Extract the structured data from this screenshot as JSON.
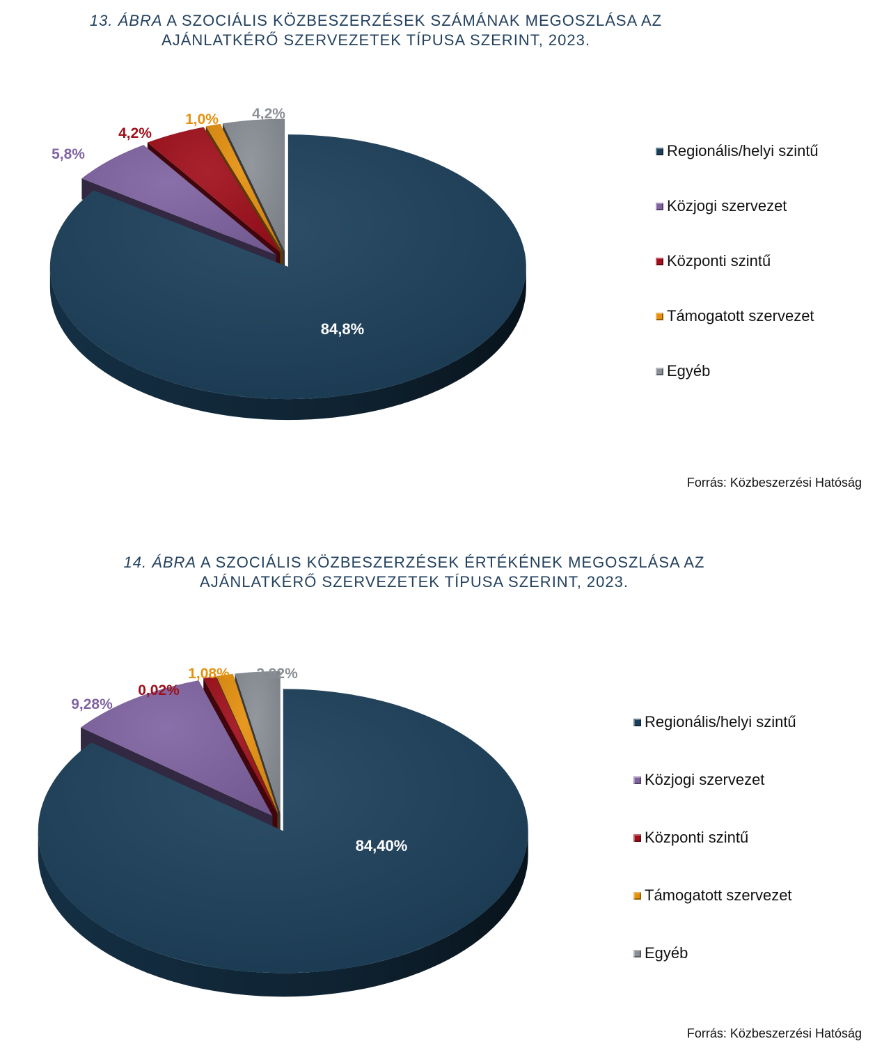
{
  "figures": [
    {
      "title_num": "13. ÁBRA",
      "title_rest_1": " A SZOCIÁLIS KÖZBESZERZÉSEK SZÁMÁNAK MEGOSZLÁSA AZ",
      "title_line_2": "AJÁNLATKÉRŐ SZERVEZETEK TÍPUSA SZERINT, 2023.",
      "source": "Forrás: Közbeszerzési Hatóság"
    },
    {
      "title_num": "14. ÁBRA",
      "title_rest_1": " A SZOCIÁLIS KÖZBESZERZÉSEK ÉRTÉKÉNEK MEGOSZLÁSA AZ",
      "title_line_2": "AJÁNLATKÉRŐ SZERVEZETEK TÍPUSA SZERINT, 2023.",
      "source": "Forrás: Közbeszerzési Hatóság"
    }
  ],
  "colors": {
    "Regionális/helyi szintű": "#1b3f5a",
    "Közjogi szervezet": "#8064a2",
    "Központi szintű": "#a00f1b",
    "Támogatott szervezet": "#e6900e",
    "Egyéb": "#8a8f96"
  },
  "chart_data": [
    {
      "type": "pie",
      "categories": [
        "Regionális/helyi szintű",
        "Közjogi szervezet",
        "Központi szintű",
        "Támogatott szervezet",
        "Egyéb"
      ],
      "values": [
        84.8,
        5.8,
        4.2,
        1.0,
        4.2
      ],
      "data_labels": [
        "84,8%",
        "5,8%",
        "4,2%",
        "1,0%",
        "4,2%"
      ],
      "legend_position": "right"
    },
    {
      "type": "pie",
      "categories": [
        "Regionális/helyi szintű",
        "Közjogi szervezet",
        "Központi szintű",
        "Támogatott szervezet",
        "Egyéb"
      ],
      "values": [
        84.4,
        9.28,
        0.02,
        1.08,
        2.92
      ],
      "data_labels": [
        "84,40%",
        "9,28%",
        "0,02%",
        "1,08%",
        "2,92%"
      ],
      "legend_position": "right"
    }
  ]
}
